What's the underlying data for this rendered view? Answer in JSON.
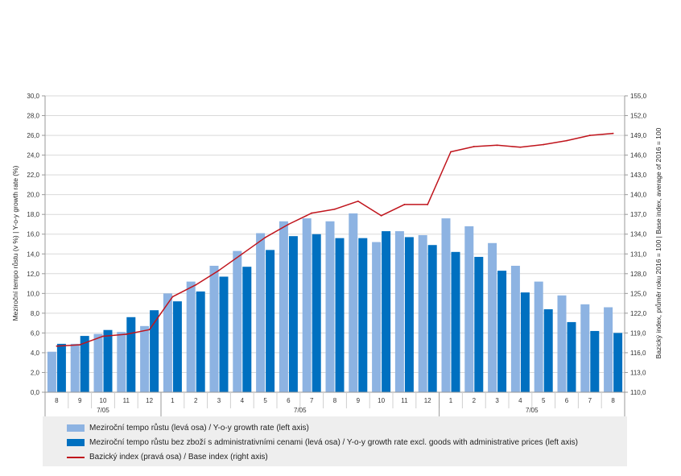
{
  "chart_data": {
    "type": "bar",
    "categories": [
      "8",
      "9",
      "10",
      "11",
      "12",
      "1",
      "2",
      "3",
      "4",
      "5",
      "6",
      "7",
      "8",
      "9",
      "10",
      "11",
      "12",
      "1",
      "2",
      "3",
      "4",
      "5",
      "6",
      "7",
      "8"
    ],
    "groups": [
      {
        "label": "7/05",
        "from": 0,
        "to": 4
      },
      {
        "label": "7/05",
        "from": 5,
        "to": 16
      },
      {
        "label": "7/05",
        "from": 17,
        "to": 24
      }
    ],
    "series": [
      {
        "name": "Meziroční tempo růstu (levá osa) / Y-o-y growth rate (left axis)",
        "type": "bar",
        "axis": "left",
        "color": "#8db3e2",
        "values": [
          4.1,
          4.9,
          5.9,
          6.1,
          6.7,
          10.0,
          11.2,
          12.8,
          14.3,
          16.1,
          17.3,
          17.6,
          17.3,
          18.1,
          15.2,
          16.3,
          15.9,
          17.6,
          16.8,
          15.1,
          12.8,
          11.2,
          9.8,
          8.9,
          8.6
        ]
      },
      {
        "name": "Meziroční tempo růstu bez zboží s administrativními cenami (levá osa) / Y-o-y growth rate excl. goods with administrative prices (left axis)",
        "type": "bar",
        "axis": "left",
        "color": "#0070c0",
        "values": [
          4.9,
          5.7,
          6.3,
          7.6,
          8.3,
          9.2,
          10.2,
          11.7,
          12.7,
          14.4,
          15.8,
          16.0,
          15.6,
          15.6,
          16.3,
          15.7,
          14.9,
          14.2,
          13.7,
          12.3,
          10.1,
          8.4,
          7.1,
          6.2,
          6.0
        ]
      },
      {
        "name": "Bazický index (pravá osa) / Base index (right axis)",
        "type": "line",
        "axis": "right",
        "color": "#c0141c",
        "values": [
          117.0,
          117.2,
          118.5,
          118.8,
          119.5,
          124.5,
          126.3,
          128.5,
          131.0,
          133.5,
          135.5,
          137.2,
          137.8,
          139.0,
          136.8,
          138.5,
          138.5,
          146.5,
          147.3,
          147.5,
          147.2,
          147.6,
          148.2,
          149.0,
          149.3
        ]
      }
    ],
    "y_left": {
      "label": "Meziroční tempo růstu (v %) | Y-o-y growth rate (%)",
      "min": 0,
      "max": 30,
      "step": 2,
      "ticks": [
        "0,0",
        "2,0",
        "4,0",
        "6,0",
        "8,0",
        "10,0",
        "12,0",
        "14,0",
        "16,0",
        "18,0",
        "20,0",
        "22,0",
        "24,0",
        "26,0",
        "28,0",
        "30,0"
      ]
    },
    "y_right": {
      "label": "Bazický index, průměr roku 2016 = 100 | Base index, average of 2016 = 100",
      "min": 110,
      "max": 155,
      "step": 3,
      "ticks": [
        "110,0",
        "113,0",
        "116,0",
        "119,0",
        "122,0",
        "125,0",
        "128,0",
        "131,0",
        "134,0",
        "137,0",
        "140,0",
        "143,0",
        "146,0",
        "149,0",
        "152,0",
        "155,0"
      ]
    },
    "grid": true,
    "legend_position": "bottom"
  }
}
